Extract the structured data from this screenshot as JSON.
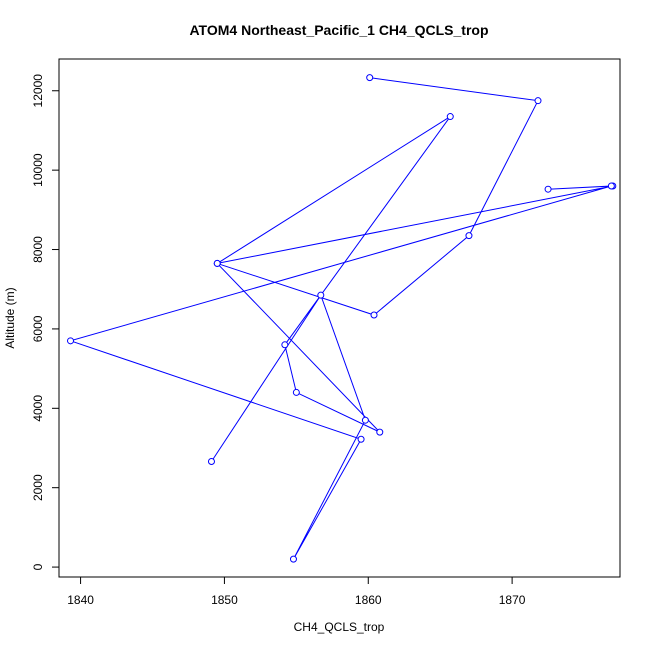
{
  "chart_data": {
    "type": "line",
    "title": "ATOM4 Northeast_Pacific_1 CH4_QCLS_trop",
    "xlabel": "CH4_QCLS_trop",
    "ylabel": "Altitude (m)",
    "xlim": [
      1838.5,
      1877.5
    ],
    "ylim": [
      -250,
      12800
    ],
    "xticks": [
      1840,
      1850,
      1860,
      1870
    ],
    "yticks": [
      0,
      2000,
      4000,
      6000,
      8000,
      10000,
      12000
    ],
    "grid": false,
    "legend": "none",
    "line_color": "#0000ff",
    "marker": "open-circle",
    "series": [
      {
        "x": [
          1860.1,
          1871.8,
          1867.0,
          1860.4,
          1849.5,
          1860.8,
          1855.0,
          1854.2,
          1865.7,
          1849.5,
          1877.0,
          1872.5,
          1876.9,
          1839.3,
          1859.5,
          1854.8,
          1859.8,
          1856.7,
          1849.1
        ],
        "y": [
          12330,
          11750,
          8350,
          6350,
          7650,
          3400,
          4400,
          5600,
          11350,
          7650,
          9600,
          9520,
          9600,
          5700,
          3220,
          200,
          3700,
          6850,
          2660
        ]
      }
    ]
  }
}
